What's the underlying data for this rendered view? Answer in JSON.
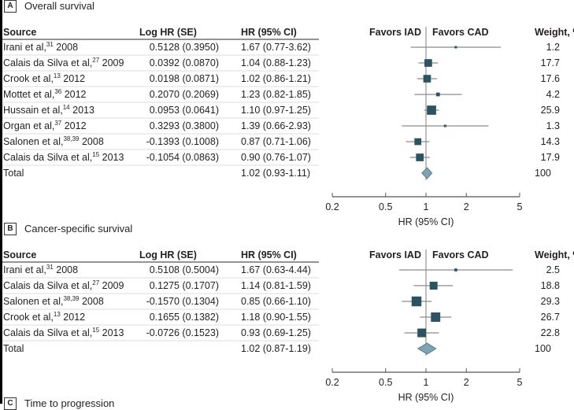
{
  "chart_data": [
    {
      "type": "forest",
      "panel_label": "A",
      "title": "Overall survival",
      "columns": {
        "source": "Source",
        "loghr": "Log HR (SE)",
        "hrci": "HR (95% CI)",
        "weight": "Weight, %"
      },
      "favors_left": "Favors IAD",
      "favors_right": "Favors CAD",
      "xlabel": "HR (95% CI)",
      "xscale": "log",
      "xlim": [
        0.2,
        5
      ],
      "xticks": [
        "0.2",
        "0.5",
        "1",
        "2",
        "5"
      ],
      "studies": [
        {
          "name": "Irani et al,",
          "ref": "31",
          "year": "2008",
          "loghr": "0.5128 (0.3950)",
          "hrci": "1.67 (0.77-3.62)",
          "hr": 1.67,
          "lo": 0.77,
          "hi": 3.62,
          "weight": "1.2"
        },
        {
          "name": "Calais da Silva et al,",
          "ref": "27",
          "year": "2009",
          "loghr": "0.0392 (0.0870)",
          "hrci": "1.04 (0.88-1.23)",
          "hr": 1.04,
          "lo": 0.88,
          "hi": 1.23,
          "weight": "17.7"
        },
        {
          "name": "Crook et al,",
          "ref": "13",
          "year": "2012",
          "loghr": "0.0198 (0.0871)",
          "hrci": "1.02 (0.86-1.21)",
          "hr": 1.02,
          "lo": 0.86,
          "hi": 1.21,
          "weight": "17.6"
        },
        {
          "name": "Mottet et al,",
          "ref": "36",
          "year": "2012",
          "loghr": "0.2070 (0.2069)",
          "hrci": "1.23 (0.82-1.85)",
          "hr": 1.23,
          "lo": 0.82,
          "hi": 1.85,
          "weight": "4.2"
        },
        {
          "name": "Hussain et al,",
          "ref": "14",
          "year": "2013",
          "loghr": "0.0953 (0.0641)",
          "hrci": "1.10 (0.97-1.25)",
          "hr": 1.1,
          "lo": 0.97,
          "hi": 1.25,
          "weight": "25.9"
        },
        {
          "name": "Organ et al,",
          "ref": "37",
          "year": "2012",
          "loghr": "0.3293 (0.3800)",
          "hrci": "1.39 (0.66-2.93)",
          "hr": 1.39,
          "lo": 0.66,
          "hi": 2.93,
          "weight": "1.3"
        },
        {
          "name": "Salonen et al,",
          "ref": "38,39",
          "year": "2008",
          "loghr": "-0.1393 (0.1008)",
          "hrci": "0.87 (0.71-1.06)",
          "hr": 0.87,
          "lo": 0.71,
          "hi": 1.06,
          "weight": "14.3"
        },
        {
          "name": "Calais da Silva et al,",
          "ref": "15",
          "year": "2013",
          "loghr": "-0.1054 (0.0863)",
          "hrci": "0.90 (0.76-1.07)",
          "hr": 0.9,
          "lo": 0.76,
          "hi": 1.07,
          "weight": "17.9"
        }
      ],
      "total": {
        "label": "Total",
        "hrci": "1.02 (0.93-1.11)",
        "hr": 1.02,
        "lo": 0.93,
        "hi": 1.11,
        "weight": "100"
      }
    },
    {
      "type": "forest",
      "panel_label": "B",
      "title": "Cancer-specific survival",
      "columns": {
        "source": "Source",
        "loghr": "Log HR (SE)",
        "hrci": "HR (95% CI)",
        "weight": "Weight, %"
      },
      "favors_left": "Favors IAD",
      "favors_right": "Favors CAD",
      "xlabel": "HR (95% CI)",
      "xscale": "log",
      "xlim": [
        0.2,
        5
      ],
      "xticks": [
        "0.2",
        "0.5",
        "1",
        "2",
        "5"
      ],
      "studies": [
        {
          "name": "Irani et al,",
          "ref": "31",
          "year": "2008",
          "loghr": "0.5108 (0.5004)",
          "hrci": "1.67 (0.63-4.44)",
          "hr": 1.67,
          "lo": 0.63,
          "hi": 4.44,
          "weight": "2.5"
        },
        {
          "name": "Calais da Silva et al,",
          "ref": "27",
          "year": "2009",
          "loghr": "0.1275 (0.1707)",
          "hrci": "1.14 (0.81-1.59)",
          "hr": 1.14,
          "lo": 0.81,
          "hi": 1.59,
          "weight": "18.8"
        },
        {
          "name": "Salonen et al,",
          "ref": "38,39",
          "year": "2008",
          "loghr": "-0.1570 (0.1304)",
          "hrci": "0.85 (0.66-1.10)",
          "hr": 0.85,
          "lo": 0.66,
          "hi": 1.1,
          "weight": "29.3"
        },
        {
          "name": "Crook et al,",
          "ref": "13",
          "year": "2012",
          "loghr": "0.1655 (0.1382)",
          "hrci": "1.18 (0.90-1.55)",
          "hr": 1.18,
          "lo": 0.9,
          "hi": 1.55,
          "weight": "26.7"
        },
        {
          "name": "Calais da Silva et al,",
          "ref": "15",
          "year": "2013",
          "loghr": "-0.0726 (0.1523)",
          "hrci": "0.93 (0.69-1.25)",
          "hr": 0.93,
          "lo": 0.69,
          "hi": 1.25,
          "weight": "22.8"
        }
      ],
      "total": {
        "label": "Total",
        "hrci": "1.02 (0.87-1.19)",
        "hr": 1.02,
        "lo": 0.87,
        "hi": 1.19,
        "weight": "100"
      }
    }
  ],
  "next_panel": {
    "label": "C",
    "title": "Time to progression"
  },
  "colors": {
    "box": "#2b5361",
    "ci": "#8a8a8a",
    "diamond": "#7fa3b0",
    "diamond_edge": "#4f7482"
  }
}
